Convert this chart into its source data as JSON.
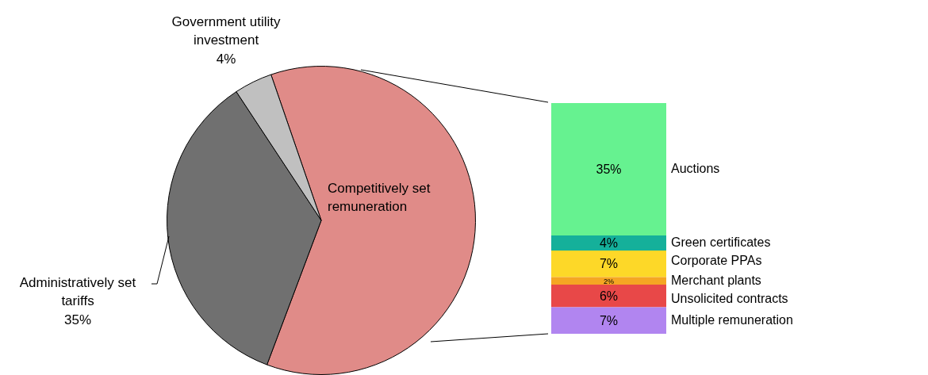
{
  "chart_data": [
    {
      "type": "pie",
      "categories": [
        "Competitively set remuneration",
        "Administratively set tariffs",
        "Government utility investment"
      ],
      "values": [
        61,
        35,
        4
      ],
      "colors": [
        "#e08b88",
        "#707070",
        "#c0c0c0"
      ],
      "value_labels": [
        null,
        "35%",
        "4%"
      ]
    },
    {
      "type": "bar",
      "stacked": true,
      "categories": [
        null
      ],
      "tick_labels": false,
      "series": [
        {
          "name": "Multiple remuneration",
          "color": "#b185f0",
          "values": [
            7
          ],
          "value_labels": [
            "7%"
          ]
        },
        {
          "name": "Unsolicited contracts",
          "color": "#e84848",
          "values": [
            6
          ],
          "value_labels": [
            "6%"
          ]
        },
        {
          "name": "Merchant plants",
          "color": "#f5a623",
          "values": [
            2
          ],
          "value_labels": [
            "2%"
          ]
        },
        {
          "name": "Corporate PPAs",
          "color": "#fdd828",
          "values": [
            7
          ],
          "value_labels": [
            "7%"
          ]
        },
        {
          "name": "Green certificates",
          "color": "#15b09a",
          "values": [
            4
          ],
          "value_labels": [
            "4%"
          ]
        },
        {
          "name": "Auctions",
          "color": "#66f290",
          "values": [
            35
          ],
          "value_labels": [
            "35%"
          ]
        }
      ]
    }
  ]
}
